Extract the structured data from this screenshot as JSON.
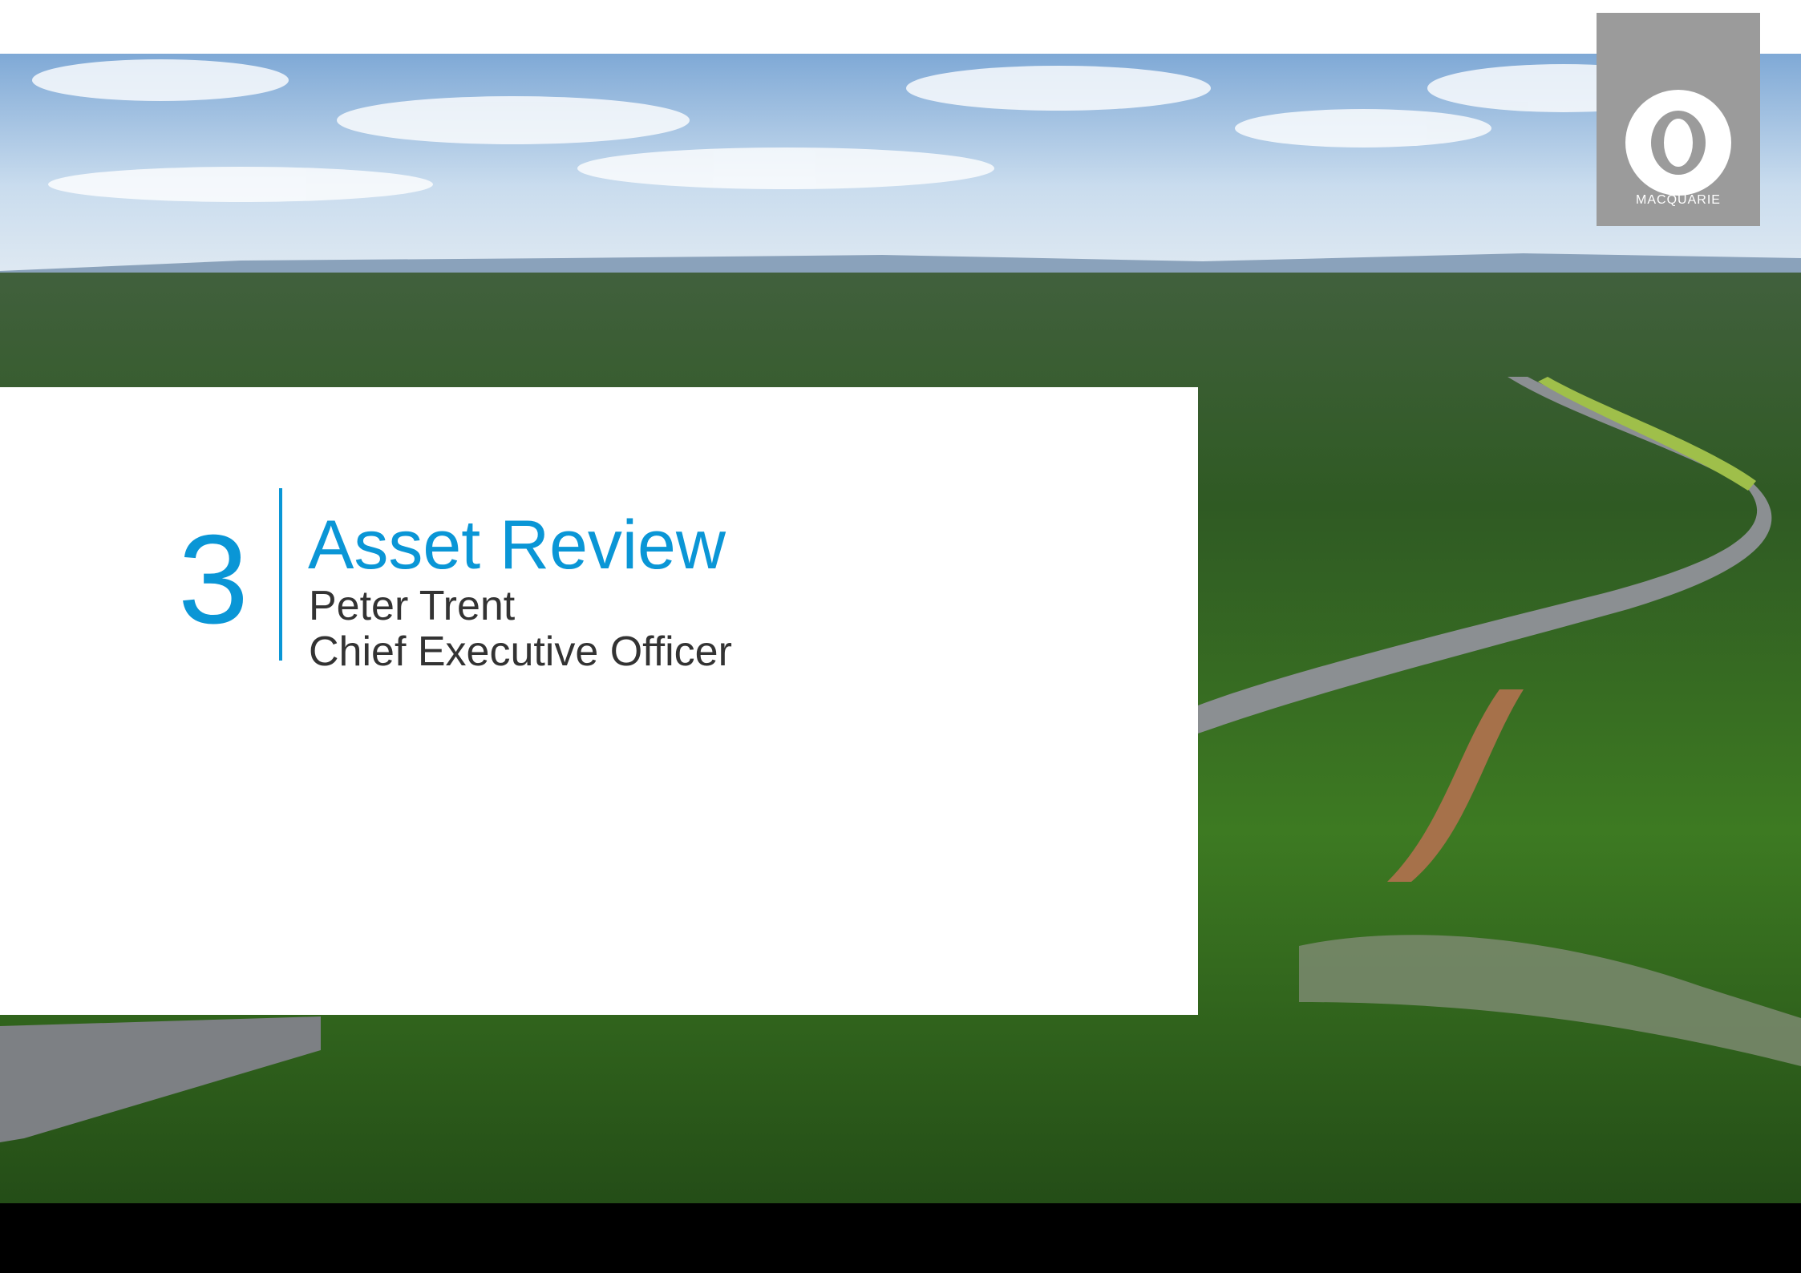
{
  "logo": {
    "text": "MACQUARIE"
  },
  "section": {
    "number": "3",
    "title": "Asset Review",
    "presenter": "Peter Trent",
    "role": "Chief Executive Officer"
  }
}
